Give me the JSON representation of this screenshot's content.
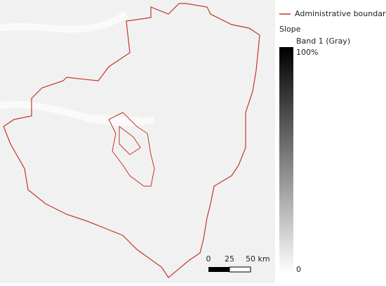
{
  "legend": {
    "boundary_label": "Administrative boundaries",
    "layer_title": "Slope",
    "band_label": "Band 1 (Gray)",
    "max_label": "100%",
    "min_label": "0"
  },
  "scale_bar": {
    "labels": [
      "0",
      "25",
      "50 km"
    ]
  }
}
